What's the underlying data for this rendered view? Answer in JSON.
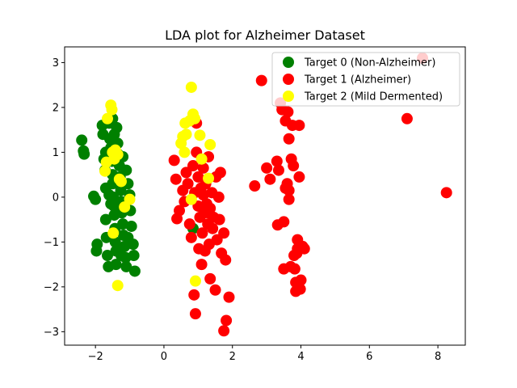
{
  "chart_data": {
    "type": "scatter",
    "title": "LDA plot for Alzheimer Dataset",
    "xlabel": "",
    "ylabel": "",
    "xlim": [
      -2.9,
      8.8
    ],
    "ylim": [
      -3.3,
      3.35
    ],
    "x_ticks": [
      -2,
      0,
      2,
      4,
      6,
      8
    ],
    "x_tick_labels": [
      "−2",
      "0",
      "2",
      "4",
      "6",
      "8"
    ],
    "y_ticks": [
      -3,
      -2,
      -1,
      0,
      1,
      2,
      3
    ],
    "y_tick_labels": [
      "−3",
      "−2",
      "−1",
      "0",
      "1",
      "2",
      "3"
    ],
    "grid": false,
    "legend_position": "top-right",
    "series": [
      {
        "name": "Target 0 (Non-Alzheimer)",
        "color": "#008000",
        "points": [
          [
            -2.4,
            1.27
          ],
          [
            -2.35,
            1.03
          ],
          [
            -2.33,
            0.96
          ],
          [
            -2.05,
            0.02
          ],
          [
            -2.0,
            -0.05
          ],
          [
            -1.95,
            -1.05
          ],
          [
            -1.97,
            -1.2
          ],
          [
            -1.8,
            1.6
          ],
          [
            -1.78,
            1.4
          ],
          [
            -1.75,
            0.85
          ],
          [
            -1.72,
            0.6
          ],
          [
            -1.7,
            0.2
          ],
          [
            -1.7,
            -0.5
          ],
          [
            -1.68,
            -0.9
          ],
          [
            -1.65,
            -1.3
          ],
          [
            -1.62,
            -1.55
          ],
          [
            -1.6,
            1.65
          ],
          [
            -1.58,
            1.3
          ],
          [
            -1.55,
            1.1
          ],
          [
            -1.52,
            0.8
          ],
          [
            -1.5,
            0.5
          ],
          [
            -1.5,
            0.3
          ],
          [
            -1.48,
            0.0
          ],
          [
            -1.46,
            -0.2
          ],
          [
            -1.45,
            -0.4
          ],
          [
            -1.43,
            -0.7
          ],
          [
            -1.42,
            -1.0
          ],
          [
            -1.4,
            -1.2
          ],
          [
            -1.4,
            -1.5
          ],
          [
            -1.38,
            1.55
          ],
          [
            -1.35,
            1.2
          ],
          [
            -1.33,
            0.95
          ],
          [
            -1.3,
            0.7
          ],
          [
            -1.28,
            0.45
          ],
          [
            -1.26,
            0.15
          ],
          [
            -1.25,
            -0.1
          ],
          [
            -1.23,
            -0.35
          ],
          [
            -1.2,
            -0.6
          ],
          [
            -1.18,
            -0.85
          ],
          [
            -1.15,
            -1.1
          ],
          [
            -1.12,
            -1.35
          ],
          [
            -1.1,
            -1.55
          ],
          [
            -1.1,
            0.6
          ],
          [
            -1.05,
            0.3
          ],
          [
            -1.0,
            0.05
          ],
          [
            -0.98,
            -0.3
          ],
          [
            -0.95,
            -0.65
          ],
          [
            -0.9,
            -1.05
          ],
          [
            -0.88,
            -1.3
          ],
          [
            -0.85,
            -1.65
          ],
          [
            -1.6,
            0.05
          ],
          [
            -1.55,
            -0.15
          ],
          [
            -1.35,
            0.3
          ],
          [
            -1.3,
            -0.3
          ],
          [
            -1.25,
            -1.3
          ],
          [
            -1.45,
            1.4
          ],
          [
            -1.5,
            1.75
          ],
          [
            -1.2,
            0.9
          ],
          [
            -1.7,
            1.0
          ],
          [
            -1.05,
            -0.9
          ],
          [
            0.85,
            -0.7
          ]
        ]
      },
      {
        "name": "Target 1 (Alzheimer)",
        "color": "#ff0000",
        "points": [
          [
            0.3,
            0.82
          ],
          [
            0.35,
            0.4
          ],
          [
            0.38,
            -0.48
          ],
          [
            0.45,
            -0.3
          ],
          [
            0.55,
            0.15
          ],
          [
            0.6,
            -0.1
          ],
          [
            0.65,
            0.55
          ],
          [
            0.7,
            0.3
          ],
          [
            0.75,
            -0.6
          ],
          [
            0.8,
            -0.9
          ],
          [
            0.85,
            0.7
          ],
          [
            0.88,
            -2.18
          ],
          [
            0.92,
            -2.6
          ],
          [
            0.95,
            1.0
          ],
          [
            0.95,
            1.65
          ],
          [
            1.0,
            0.45
          ],
          [
            1.0,
            -0.2
          ],
          [
            1.02,
            -1.15
          ],
          [
            1.05,
            -0.45
          ],
          [
            1.08,
            0.2
          ],
          [
            1.1,
            -1.5
          ],
          [
            1.12,
            -0.8
          ],
          [
            1.15,
            0.05
          ],
          [
            1.18,
            -0.35
          ],
          [
            1.2,
            -1.2
          ],
          [
            1.22,
            0.3
          ],
          [
            1.25,
            -0.15
          ],
          [
            1.28,
            -0.6
          ],
          [
            1.3,
            0.9
          ],
          [
            1.32,
            -1.05
          ],
          [
            1.35,
            -0.25
          ],
          [
            1.35,
            -1.82
          ],
          [
            1.4,
            0.1
          ],
          [
            1.42,
            -0.7
          ],
          [
            1.45,
            -0.45
          ],
          [
            1.5,
            -2.07
          ],
          [
            1.52,
            0.45
          ],
          [
            1.55,
            -0.95
          ],
          [
            1.6,
            0.0
          ],
          [
            1.62,
            -0.5
          ],
          [
            1.65,
            0.55
          ],
          [
            1.68,
            -1.25
          ],
          [
            1.75,
            -0.8
          ],
          [
            1.75,
            -2.98
          ],
          [
            1.8,
            -1.4
          ],
          [
            1.82,
            -2.75
          ],
          [
            1.9,
            -2.23
          ],
          [
            0.9,
            0.1
          ],
          [
            1.15,
            0.65
          ],
          [
            1.3,
            -0.35
          ],
          [
            2.65,
            0.25
          ],
          [
            2.85,
            2.6
          ],
          [
            3.0,
            0.65
          ],
          [
            3.1,
            0.4
          ],
          [
            3.3,
            0.8
          ],
          [
            3.32,
            -0.62
          ],
          [
            3.35,
            0.6
          ],
          [
            3.4,
            2.1
          ],
          [
            3.45,
            1.95
          ],
          [
            3.5,
            -0.55
          ],
          [
            3.5,
            -1.6
          ],
          [
            3.55,
            0.2
          ],
          [
            3.55,
            1.7
          ],
          [
            3.6,
            0.3
          ],
          [
            3.62,
            1.9
          ],
          [
            3.65,
            -0.05
          ],
          [
            3.65,
            0.15
          ],
          [
            3.7,
            -1.55
          ],
          [
            3.72,
            0.85
          ],
          [
            3.75,
            1.6
          ],
          [
            3.78,
            0.7
          ],
          [
            3.8,
            -1.3
          ],
          [
            3.82,
            -1.6
          ],
          [
            3.85,
            -2.1
          ],
          [
            3.85,
            -1.9
          ],
          [
            3.9,
            -1.15
          ],
          [
            3.9,
            -0.95
          ],
          [
            3.95,
            1.6
          ],
          [
            3.95,
            0.45
          ],
          [
            3.98,
            -2.05
          ],
          [
            4.0,
            -1.85
          ],
          [
            4.05,
            -1.1
          ],
          [
            4.1,
            -1.15
          ],
          [
            3.65,
            1.3
          ],
          [
            3.88,
            -1.25
          ],
          [
            7.1,
            1.75
          ],
          [
            7.55,
            3.1
          ],
          [
            8.25,
            0.1
          ]
        ]
      },
      {
        "name": "Target 2 (Mild Dermented)",
        "color": "#ffff00",
        "points": [
          [
            -1.72,
            0.58
          ],
          [
            -1.68,
            0.78
          ],
          [
            -1.65,
            1.75
          ],
          [
            -1.55,
            2.05
          ],
          [
            -1.52,
            1.95
          ],
          [
            -1.5,
            1.0
          ],
          [
            -1.48,
            -0.8
          ],
          [
            -1.45,
            0.85
          ],
          [
            -1.42,
            1.05
          ],
          [
            -1.35,
            0.95
          ],
          [
            -1.35,
            -1.97
          ],
          [
            -1.3,
            0.4
          ],
          [
            -1.25,
            0.35
          ],
          [
            -1.15,
            -0.22
          ],
          [
            -1.0,
            -0.05
          ],
          [
            0.5,
            1.2
          ],
          [
            0.55,
            1.35
          ],
          [
            0.6,
            1.0
          ],
          [
            0.62,
            1.65
          ],
          [
            0.65,
            1.4
          ],
          [
            0.75,
            1.7
          ],
          [
            0.8,
            2.45
          ],
          [
            0.8,
            -0.05
          ],
          [
            0.85,
            1.85
          ],
          [
            0.9,
            1.75
          ],
          [
            0.92,
            -1.87
          ],
          [
            1.05,
            1.38
          ],
          [
            1.1,
            0.85
          ],
          [
            1.3,
            0.42
          ],
          [
            1.35,
            1.17
          ]
        ]
      }
    ]
  }
}
